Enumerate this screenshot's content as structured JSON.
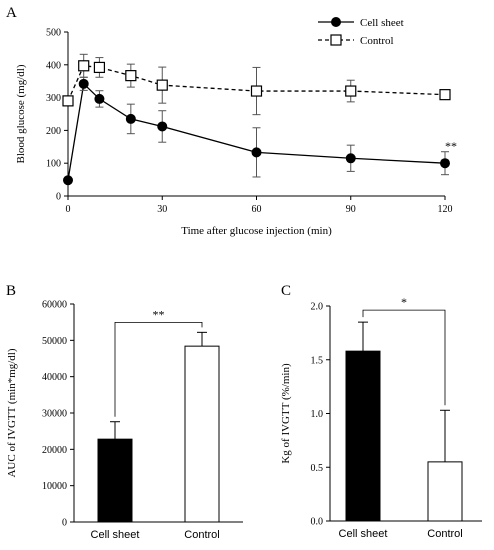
{
  "chart_data": [
    {
      "type": "line",
      "panel_label": "A",
      "xlabel": "Time after glucose injection (min)",
      "ylabel": "Blood glucose (mg/dl)",
      "xlim": [
        0,
        120
      ],
      "ylim": [
        0,
        500
      ],
      "xticks": [
        0,
        30,
        60,
        90,
        120
      ],
      "yticks": [
        0,
        100,
        200,
        300,
        400,
        500
      ],
      "x": [
        0,
        5,
        10,
        20,
        30,
        60,
        90,
        120
      ],
      "legend_position": "top-right",
      "grid": false,
      "series": [
        {
          "name": "Cell sheet",
          "marker": "filled-circle",
          "line": "solid",
          "values": [
            48,
            342,
            296,
            235,
            212,
            133,
            115,
            100
          ],
          "err": [
            0,
            20,
            25,
            45,
            48,
            75,
            40,
            35
          ]
        },
        {
          "name": "Control",
          "marker": "open-square",
          "line": "dashed",
          "values": [
            290,
            397,
            392,
            367,
            338,
            320,
            320,
            309
          ],
          "err": [
            0,
            35,
            30,
            35,
            55,
            72,
            33,
            0
          ]
        }
      ],
      "annotations": [
        {
          "text": "**",
          "x": 120
        }
      ]
    },
    {
      "type": "bar",
      "panel_label": "B",
      "categories": [
        "Cell sheet",
        "Control"
      ],
      "values": [
        22800,
        48400
      ],
      "err": [
        4800,
        3800
      ],
      "colors": [
        "#000000",
        "#ffffff"
      ],
      "ylabel": "AUC of IVGTT (min*mg/dl)",
      "ylim": [
        0,
        60000
      ],
      "yticks": [
        0,
        10000,
        20000,
        30000,
        40000,
        50000,
        60000
      ],
      "significance": "**"
    },
    {
      "type": "bar",
      "panel_label": "C",
      "categories": [
        "Cell sheet",
        "Control"
      ],
      "values": [
        1.58,
        0.55
      ],
      "err": [
        0.27,
        0.48
      ],
      "colors": [
        "#000000",
        "#ffffff"
      ],
      "ylabel": "Kg of IVGTT (%/min)",
      "ylim": [
        0,
        2.0
      ],
      "yticks": [
        "0.0",
        "0.5",
        "1.0",
        "1.5",
        "2.0"
      ],
      "significance": "*"
    }
  ]
}
